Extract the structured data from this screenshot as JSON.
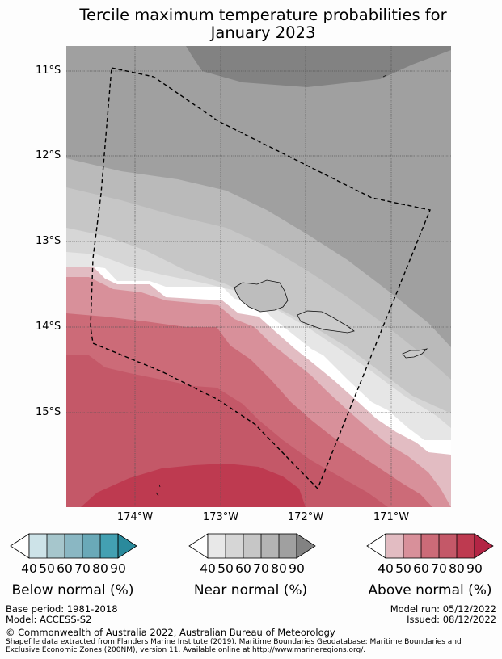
{
  "title_line1": "Tercile maximum temperature probabilities for",
  "title_line2": "January 2023",
  "map": {
    "lat_ticks": [
      "11°S",
      "12°S",
      "13°S",
      "14°S",
      "15°S"
    ],
    "lon_ticks": [
      "174°W",
      "173°W",
      "172°W",
      "171°W"
    ],
    "colors": {
      "near_90": "#828282",
      "near_80": "#a0a0a0",
      "near_70": "#bababa",
      "near_60": "#c6c6c6",
      "near_50": "#d6d6d6",
      "near_40": "#e6e6e6",
      "above_40": "#e2bcc2",
      "above_50": "#d8909a",
      "above_60": "#cc6b78",
      "above_70": "#c45868",
      "above_80": "#be3a50"
    }
  },
  "colorbars": {
    "below": {
      "label": "Below normal (%)",
      "ticks": [
        "40",
        "50",
        "60",
        "70",
        "80",
        "90"
      ],
      "colors": [
        "#ffffff",
        "#cde3e8",
        "#a6c6cc",
        "#8ab7c3",
        "#6aa9b8",
        "#43a0b2",
        "#2a8a9c"
      ]
    },
    "near": {
      "label": "Near normal (%)",
      "ticks": [
        "40",
        "50",
        "60",
        "70",
        "80",
        "90"
      ],
      "colors": [
        "#ffffff",
        "#e8e8e8",
        "#d6d6d6",
        "#c6c6c6",
        "#b4b4b4",
        "#a0a0a0",
        "#828282"
      ]
    },
    "above": {
      "label": "Above normal (%)",
      "ticks": [
        "40",
        "50",
        "60",
        "70",
        "80",
        "90"
      ],
      "colors": [
        "#ffffff",
        "#e2bcc2",
        "#d8909a",
        "#cc6b78",
        "#c45868",
        "#be3a50",
        "#b32545"
      ]
    }
  },
  "footer": {
    "base_period": "Base period: 1981-2018",
    "model": "Model: ACCESS-S2",
    "model_run": "Model run: 05/12/2022",
    "issued": "Issued: 08/12/2022",
    "copyright": "© Commonwealth of Australia 2022, Australian Bureau of Meteorology",
    "shapefile_line1": "Shapefile data extracted from Flanders Marine Institute (2019), Maritime Boundaries Geodatabase: Maritime Boundaries and",
    "shapefile_line2": "Exclusive Economic Zones (200NM), version 11. Available online at http://www.marineregions.org/."
  }
}
